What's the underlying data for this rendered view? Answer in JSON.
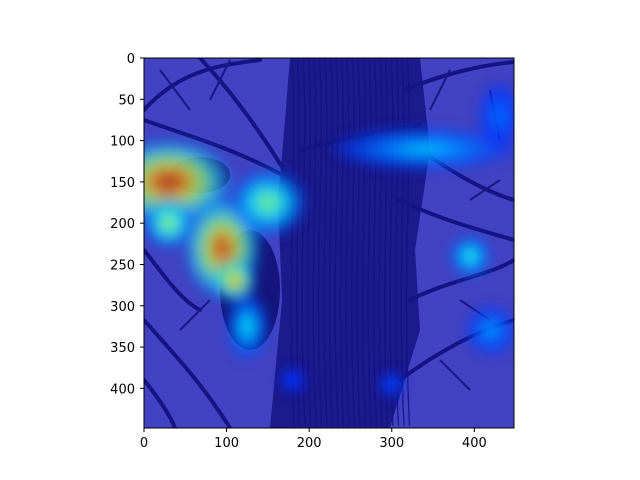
{
  "chart_data": {
    "type": "heatmap",
    "title": "",
    "xlabel": "",
    "ylabel": "",
    "xlim": [
      0,
      448
    ],
    "ylim": [
      448,
      0
    ],
    "x_ticks": [
      0,
      100,
      200,
      300,
      400
    ],
    "y_ticks": [
      0,
      50,
      100,
      150,
      200,
      250,
      300,
      350,
      400
    ],
    "x_tick_labels": [
      "0",
      "100",
      "200",
      "300",
      "400"
    ],
    "y_tick_labels": [
      "0",
      "50",
      "100",
      "150",
      "200",
      "250",
      "300",
      "350",
      "400"
    ],
    "grid": false,
    "colormap": "jet",
    "background_image": "woodpecker perched on tree trunk with bare branches",
    "hotspots": [
      {
        "x": 30,
        "y": 150,
        "rx": 75,
        "ry": 50,
        "intensity": 1.0
      },
      {
        "x": 95,
        "y": 230,
        "rx": 45,
        "ry": 60,
        "intensity": 0.95
      },
      {
        "x": 110,
        "y": 270,
        "rx": 25,
        "ry": 25,
        "intensity": 0.85
      },
      {
        "x": 150,
        "y": 175,
        "rx": 45,
        "ry": 40,
        "intensity": 0.55
      },
      {
        "x": 125,
        "y": 325,
        "rx": 25,
        "ry": 40,
        "intensity": 0.4
      },
      {
        "x": 30,
        "y": 200,
        "rx": 30,
        "ry": 30,
        "intensity": 0.6
      },
      {
        "x": 340,
        "y": 110,
        "rx": 110,
        "ry": 25,
        "intensity": 0.35
      },
      {
        "x": 395,
        "y": 240,
        "rx": 25,
        "ry": 25,
        "intensity": 0.45
      },
      {
        "x": 420,
        "y": 330,
        "rx": 30,
        "ry": 30,
        "intensity": 0.3
      },
      {
        "x": 430,
        "y": 70,
        "rx": 25,
        "ry": 40,
        "intensity": 0.25
      },
      {
        "x": 300,
        "y": 395,
        "rx": 15,
        "ry": 15,
        "intensity": 0.22
      },
      {
        "x": 180,
        "y": 390,
        "rx": 15,
        "ry": 15,
        "intensity": 0.2
      }
    ]
  }
}
